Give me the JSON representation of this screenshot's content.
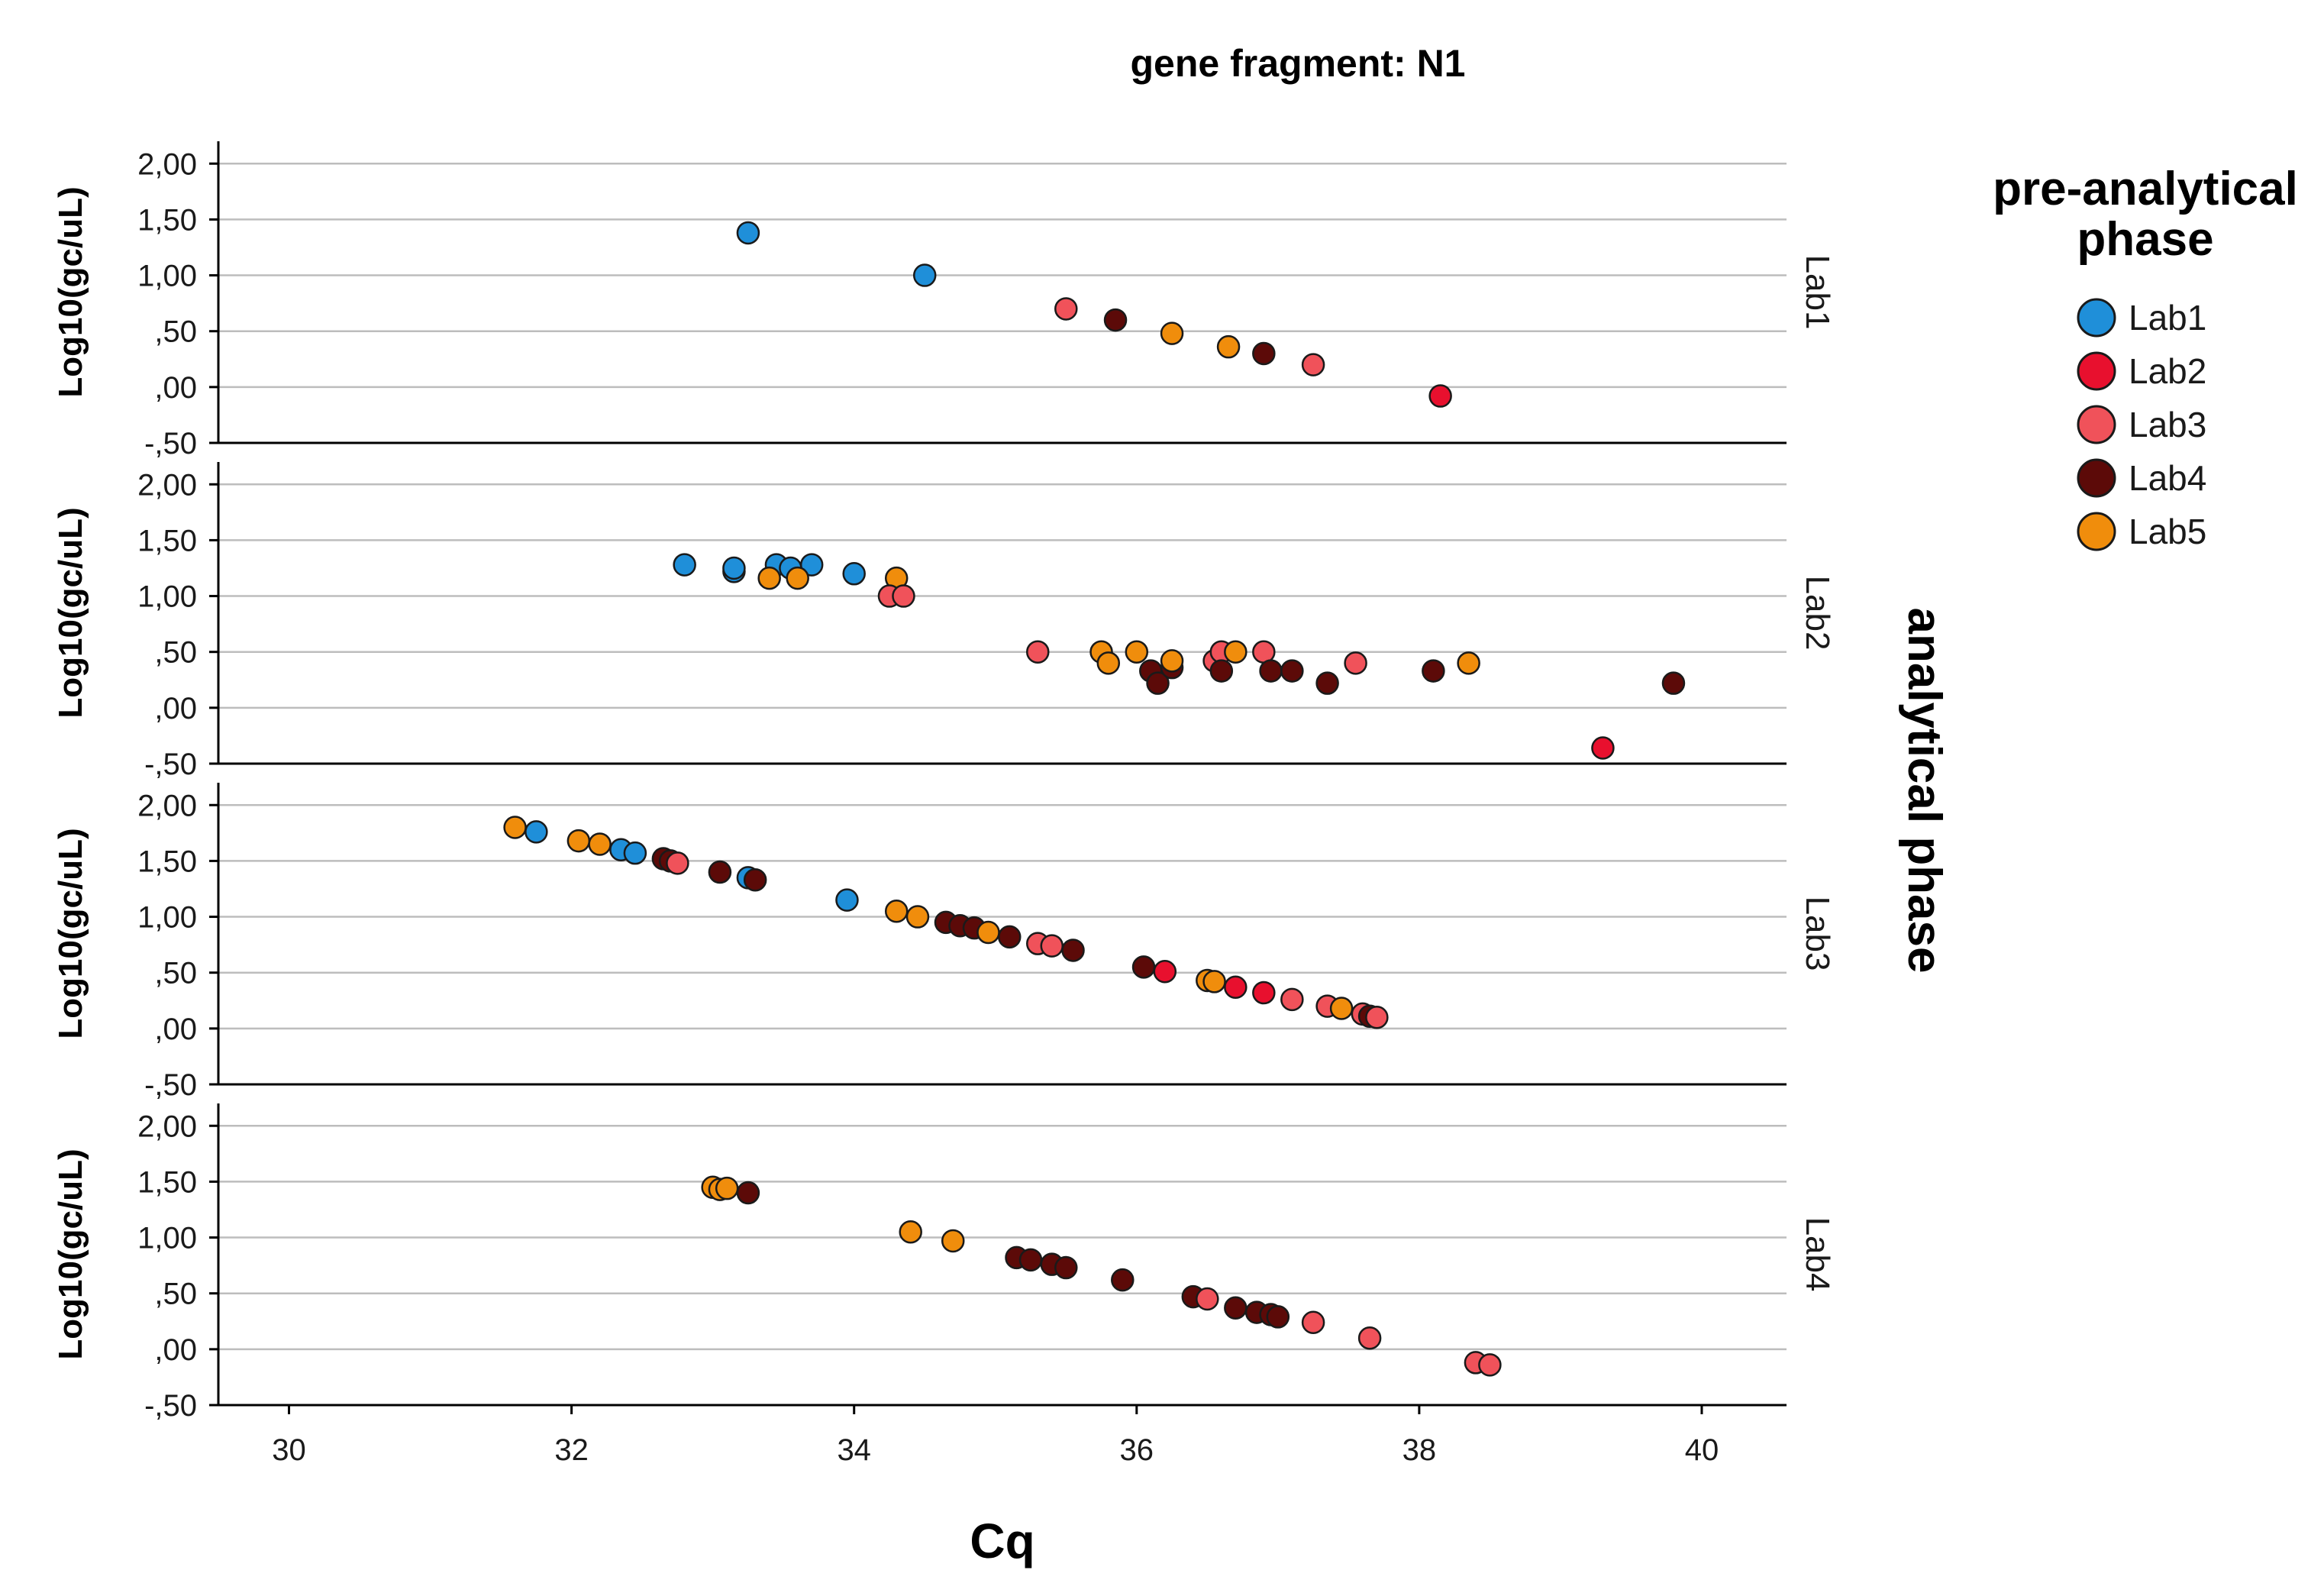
{
  "chart_data": {
    "type": "scatter",
    "title": "gene fragment: N1",
    "xlabel": "Cq",
    "ylabel": "Log10(gc/uL)",
    "facet_label": "analytical phase",
    "legend_title": "pre-analytical phase",
    "legend_position": "right",
    "grid": "horizontal",
    "xlim": [
      29.5,
      40.6
    ],
    "ylim": [
      -0.5,
      2.2
    ],
    "x_ticks": [
      30,
      32,
      34,
      36,
      38,
      40
    ],
    "x_tick_labels": [
      "30",
      "32",
      "34",
      "36",
      "38",
      "40"
    ],
    "y_ticks": [
      -0.5,
      0,
      0.5,
      1,
      1.5,
      2
    ],
    "y_tick_labels": [
      "-,50",
      ",00",
      ",50",
      "1,00",
      "1,50",
      "2,00"
    ],
    "series_colors": {
      "Lab1": "#1f8fd9",
      "Lab2": "#e8102e",
      "Lab3": "#f0525a",
      "Lab4": "#5c0a08",
      "Lab5": "#f08d0c"
    },
    "series": [
      "Lab1",
      "Lab2",
      "Lab3",
      "Lab4",
      "Lab5"
    ],
    "panels": [
      {
        "label": "Lab1",
        "points": [
          [
            "Lab1",
            33.25,
            1.38
          ],
          [
            "Lab1",
            34.5,
            1.0
          ],
          [
            "Lab3",
            35.5,
            0.7
          ],
          [
            "Lab4",
            35.85,
            0.6
          ],
          [
            "Lab5",
            36.25,
            0.48
          ],
          [
            "Lab5",
            36.65,
            0.36
          ],
          [
            "Lab4",
            36.9,
            0.3
          ],
          [
            "Lab3",
            37.25,
            0.2
          ],
          [
            "Lab2",
            38.15,
            -0.08
          ]
        ]
      },
      {
        "label": "Lab2",
        "points": [
          [
            "Lab1",
            32.8,
            1.28
          ],
          [
            "Lab1",
            33.15,
            1.22
          ],
          [
            "Lab1",
            33.15,
            1.25
          ],
          [
            "Lab1",
            33.45,
            1.28
          ],
          [
            "Lab1",
            33.55,
            1.25
          ],
          [
            "Lab1",
            33.7,
            1.28
          ],
          [
            "Lab1",
            34.0,
            1.2
          ],
          [
            "Lab5",
            33.4,
            1.16
          ],
          [
            "Lab5",
            33.6,
            1.16
          ],
          [
            "Lab5",
            34.3,
            1.16
          ],
          [
            "Lab3",
            34.25,
            1.0
          ],
          [
            "Lab3",
            34.35,
            1.0
          ],
          [
            "Lab3",
            35.3,
            0.5
          ],
          [
            "Lab5",
            35.75,
            0.5
          ],
          [
            "Lab5",
            35.8,
            0.4
          ],
          [
            "Lab5",
            36.0,
            0.5
          ],
          [
            "Lab4",
            36.1,
            0.33
          ],
          [
            "Lab4",
            36.15,
            0.22
          ],
          [
            "Lab4",
            36.25,
            0.36
          ],
          [
            "Lab5",
            36.25,
            0.42
          ],
          [
            "Lab3",
            36.55,
            0.42
          ],
          [
            "Lab3",
            36.6,
            0.5
          ],
          [
            "Lab4",
            36.6,
            0.33
          ],
          [
            "Lab5",
            36.7,
            0.5
          ],
          [
            "Lab3",
            36.9,
            0.5
          ],
          [
            "Lab4",
            36.95,
            0.33
          ],
          [
            "Lab4",
            37.1,
            0.33
          ],
          [
            "Lab4",
            37.35,
            0.22
          ],
          [
            "Lab3",
            37.55,
            0.4
          ],
          [
            "Lab4",
            38.1,
            0.33
          ],
          [
            "Lab5",
            38.35,
            0.4
          ],
          [
            "Lab2",
            39.3,
            -0.36
          ],
          [
            "Lab4",
            39.8,
            0.22
          ]
        ]
      },
      {
        "label": "Lab3",
        "points": [
          [
            "Lab5",
            31.6,
            1.8
          ],
          [
            "Lab1",
            31.75,
            1.76
          ],
          [
            "Lab5",
            32.05,
            1.68
          ],
          [
            "Lab5",
            32.2,
            1.65
          ],
          [
            "Lab1",
            32.35,
            1.6
          ],
          [
            "Lab1",
            32.45,
            1.57
          ],
          [
            "Lab4",
            32.65,
            1.52
          ],
          [
            "Lab4",
            32.7,
            1.5
          ],
          [
            "Lab3",
            32.75,
            1.48
          ],
          [
            "Lab4",
            33.05,
            1.4
          ],
          [
            "Lab1",
            33.25,
            1.35
          ],
          [
            "Lab4",
            33.3,
            1.33
          ],
          [
            "Lab1",
            33.95,
            1.15
          ],
          [
            "Lab5",
            34.3,
            1.05
          ],
          [
            "Lab5",
            34.45,
            1.0
          ],
          [
            "Lab4",
            34.65,
            0.95
          ],
          [
            "Lab4",
            34.75,
            0.92
          ],
          [
            "Lab4",
            34.85,
            0.9
          ],
          [
            "Lab5",
            34.95,
            0.86
          ],
          [
            "Lab4",
            35.1,
            0.82
          ],
          [
            "Lab3",
            35.3,
            0.76
          ],
          [
            "Lab3",
            35.4,
            0.74
          ],
          [
            "Lab4",
            35.55,
            0.7
          ],
          [
            "Lab4",
            36.05,
            0.55
          ],
          [
            "Lab2",
            36.2,
            0.51
          ],
          [
            "Lab5",
            36.5,
            0.43
          ],
          [
            "Lab5",
            36.55,
            0.42
          ],
          [
            "Lab2",
            36.7,
            0.37
          ],
          [
            "Lab2",
            36.9,
            0.32
          ],
          [
            "Lab3",
            37.1,
            0.26
          ],
          [
            "Lab3",
            37.35,
            0.2
          ],
          [
            "Lab5",
            37.45,
            0.18
          ],
          [
            "Lab3",
            37.6,
            0.13
          ],
          [
            "Lab4",
            37.65,
            0.11
          ],
          [
            "Lab3",
            37.7,
            0.1
          ]
        ]
      },
      {
        "label": "Lab4",
        "points": [
          [
            "Lab5",
            33.0,
            1.45
          ],
          [
            "Lab5",
            33.05,
            1.43
          ],
          [
            "Lab5",
            33.1,
            1.44
          ],
          [
            "Lab4",
            33.25,
            1.4
          ],
          [
            "Lab5",
            34.4,
            1.05
          ],
          [
            "Lab5",
            34.7,
            0.97
          ],
          [
            "Lab4",
            35.15,
            0.82
          ],
          [
            "Lab4",
            35.25,
            0.8
          ],
          [
            "Lab4",
            35.4,
            0.76
          ],
          [
            "Lab4",
            35.5,
            0.73
          ],
          [
            "Lab4",
            35.9,
            0.62
          ],
          [
            "Lab4",
            36.4,
            0.47
          ],
          [
            "Lab3",
            36.5,
            0.45
          ],
          [
            "Lab4",
            36.7,
            0.37
          ],
          [
            "Lab4",
            36.85,
            0.33
          ],
          [
            "Lab4",
            36.95,
            0.31
          ],
          [
            "Lab4",
            37.0,
            0.29
          ],
          [
            "Lab3",
            37.25,
            0.24
          ],
          [
            "Lab3",
            37.65,
            0.1
          ],
          [
            "Lab3",
            38.4,
            -0.12
          ],
          [
            "Lab3",
            38.5,
            -0.14
          ]
        ]
      }
    ]
  }
}
